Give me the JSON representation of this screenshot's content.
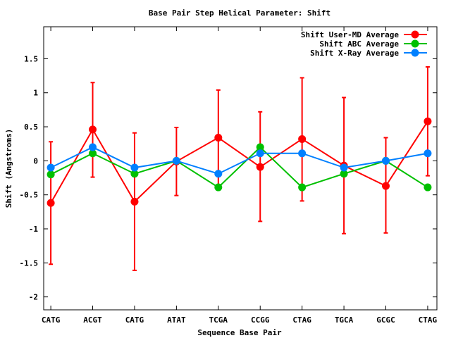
{
  "chart_data": {
    "type": "line",
    "title": "Base Pair Step Helical Parameter: Shift",
    "xlabel": "Sequence Base Pair",
    "ylabel": "Shift (Angstroms)",
    "categories": [
      "CATG",
      "ACGT",
      "CATG",
      "ATAT",
      "TCGA",
      "CCGG",
      "CTAG",
      "TGCA",
      "GCGC",
      "CTAG"
    ],
    "xlim": [
      -0.17,
      9.22
    ],
    "ylim": [
      -2.19,
      1.97
    ],
    "yticks": [
      1.5,
      1,
      0.5,
      0,
      -0.5,
      -1,
      -1.5,
      -2
    ],
    "ytick_labels": [
      "1.5",
      "1",
      "0.5",
      "0",
      "-0.5",
      "-1",
      "-1.5",
      "-2"
    ],
    "grid": false,
    "legend_position": "top-right",
    "series": [
      {
        "name": "Shift User-MD Average",
        "color": "#ff0000",
        "values": [
          -0.62,
          0.46,
          -0.6,
          -0.01,
          0.34,
          -0.09,
          0.32,
          -0.07,
          -0.37,
          0.58
        ],
        "err_high": [
          0.28,
          1.15,
          0.41,
          0.49,
          1.04,
          0.72,
          1.22,
          0.93,
          0.34,
          1.38
        ],
        "err_low": [
          -1.52,
          -0.24,
          -1.61,
          -0.51,
          -0.36,
          -0.89,
          -0.59,
          -1.07,
          -1.06,
          -0.22
        ]
      },
      {
        "name": "Shift ABC Average",
        "color": "#00c000",
        "values": [
          -0.2,
          0.11,
          -0.19,
          0.0,
          -0.39,
          0.2,
          -0.39,
          -0.19,
          0.0,
          -0.39
        ]
      },
      {
        "name": "Shift X-Ray Average",
        "color": "#0080ff",
        "values": [
          -0.1,
          0.2,
          -0.1,
          0.0,
          -0.19,
          0.11,
          0.11,
          -0.1,
          0.0,
          0.11
        ]
      }
    ]
  }
}
